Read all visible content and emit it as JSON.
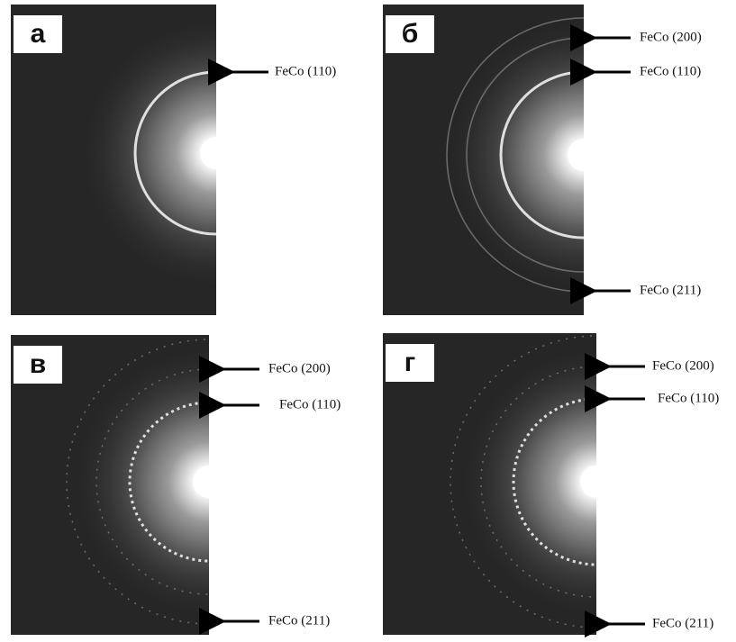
{
  "panels": [
    {
      "label": "а",
      "annotations": [
        "FeCo (110)"
      ]
    },
    {
      "label": "б",
      "annotations": [
        "FeCo (200)",
        "FeCo (110)",
        "FeCo (211)"
      ]
    },
    {
      "label": "в",
      "annotations": [
        "FeCo (200)",
        "FeCo (110)",
        "FeCo (211)"
      ]
    },
    {
      "label": "г",
      "annotations": [
        "FeCo (200)",
        "FeCo (110)",
        "FeCo (211)"
      ]
    }
  ]
}
